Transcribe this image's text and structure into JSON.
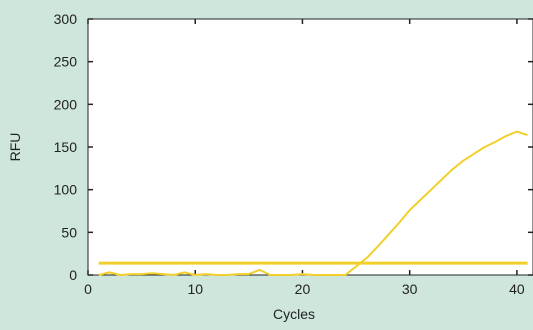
{
  "chart_data": {
    "type": "line",
    "title": "",
    "xlabel": "Cycles",
    "ylabel": "RFU",
    "xlim": [
      0,
      41.5
    ],
    "ylim": [
      0,
      300
    ],
    "xticks": [
      0,
      10,
      20,
      30,
      40
    ],
    "yticks": [
      0,
      50,
      100,
      150,
      200,
      250,
      300
    ],
    "grid": false,
    "legend": "none",
    "background_color": "#cfe6dd",
    "plot_background_color": "#ffffff",
    "series": [
      {
        "color": "#f2cf2a",
        "x": [
          1,
          2,
          3,
          4,
          5,
          6,
          7,
          8,
          9,
          10,
          11,
          12,
          13,
          14,
          15,
          16,
          17,
          18,
          19,
          20,
          21,
          22,
          23,
          24,
          25,
          26,
          27,
          28,
          29,
          30,
          31,
          32,
          33,
          34,
          35,
          36,
          37,
          38,
          39,
          40,
          41
        ],
        "y": [
          0,
          3,
          0,
          1,
          1,
          2,
          1,
          0,
          3,
          0,
          1,
          0,
          0,
          1,
          1,
          6,
          0,
          0,
          0,
          1,
          0,
          0,
          0,
          0,
          10,
          20,
          33,
          47,
          61,
          76,
          88,
          100,
          112,
          124,
          134,
          142,
          150,
          156,
          163,
          168,
          164
        ]
      },
      {
        "color": "#f2cf2a",
        "role": "threshold",
        "x": [
          1,
          41
        ],
        "y": [
          14,
          14
        ]
      }
    ]
  }
}
